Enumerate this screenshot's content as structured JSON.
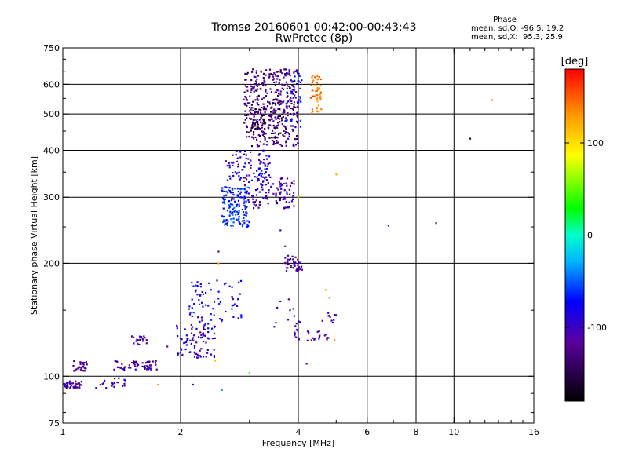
{
  "chart_data": {
    "type": "scatter",
    "title": "Tromsø 20160601 00:42:00-00:43:43",
    "subtitle": "RwPretec (8p)",
    "xlabel": "Frequency [MHz]",
    "ylabel": "Stationary phase Virtual Height [km]",
    "xscale": "log",
    "yscale": "log",
    "xlim": [
      1,
      16
    ],
    "ylim": [
      75,
      750
    ],
    "x_ticks": [
      1,
      2,
      4,
      6,
      8,
      10,
      16
    ],
    "y_ticks": [
      75,
      100,
      200,
      300,
      400,
      500,
      600,
      750
    ],
    "grid_x": [
      2,
      4,
      6,
      8,
      10
    ],
    "grid_y": [
      100,
      200,
      300,
      400,
      500,
      600
    ],
    "grid": true,
    "phase_stats": {
      "heading": "Phase",
      "o_line": "mean, sd,O: -96.5, 19.2",
      "x_line": "mean, sd,X:  95.3, 25.9"
    },
    "colorbar": {
      "label": "[deg]",
      "ticks": [
        100,
        0,
        -100
      ],
      "range": [
        -180,
        180
      ]
    },
    "clusters": [
      {
        "freq": [
          1.0,
          1.12
        ],
        "height": [
          93,
          97
        ],
        "count": 40,
        "phase": -110
      },
      {
        "freq": [
          1.05,
          1.16
        ],
        "height": [
          103,
          110
        ],
        "count": 30,
        "phase": -115
      },
      {
        "freq": [
          1.2,
          1.45
        ],
        "height": [
          93,
          99
        ],
        "count": 20,
        "phase": -108
      },
      {
        "freq": [
          1.35,
          1.75
        ],
        "height": [
          104,
          110
        ],
        "count": 60,
        "phase": -112
      },
      {
        "freq": [
          1.5,
          1.65
        ],
        "height": [
          121,
          128
        ],
        "count": 20,
        "phase": -110
      },
      {
        "freq": [
          1.95,
          2.45
        ],
        "height": [
          112,
          140
        ],
        "count": 90,
        "phase": -95
      },
      {
        "freq": [
          2.1,
          2.9
        ],
        "height": [
          140,
          180
        ],
        "count": 70,
        "phase": -80
      },
      {
        "freq": [
          2.55,
          3.0
        ],
        "height": [
          250,
          320
        ],
        "count": 140,
        "phase": -60
      },
      {
        "freq": [
          2.9,
          3.9
        ],
        "height": [
          280,
          340
        ],
        "count": 120,
        "phase": -110
      },
      {
        "freq": [
          2.6,
          3.4
        ],
        "height": [
          330,
          400
        ],
        "count": 90,
        "phase": -90
      },
      {
        "freq": [
          2.9,
          4.0
        ],
        "height": [
          410,
          660
        ],
        "count": 380,
        "phase": -130
      },
      {
        "freq": [
          3.0,
          3.6
        ],
        "height": [
          430,
          520
        ],
        "count": 60,
        "phase": -150
      },
      {
        "freq": [
          3.7,
          4.1
        ],
        "height": [
          460,
          650
        ],
        "count": 40,
        "phase": -70
      },
      {
        "freq": [
          4.3,
          4.6
        ],
        "height": [
          500,
          640
        ],
        "count": 50,
        "phase": 140
      },
      {
        "freq": [
          3.7,
          4.1
        ],
        "height": [
          190,
          210
        ],
        "count": 40,
        "phase": -115
      },
      {
        "freq": [
          3.9,
          4.05
        ],
        "height": [
          125,
          145
        ],
        "count": 15,
        "phase": -110
      },
      {
        "freq": [
          4.2,
          4.9
        ],
        "height": [
          124,
          132
        ],
        "count": 18,
        "phase": -112
      },
      {
        "freq": [
          4.6,
          5.0
        ],
        "height": [
          138,
          150
        ],
        "count": 10,
        "phase": -115
      },
      {
        "freq": [
          3.4,
          3.9
        ],
        "height": [
          135,
          170
        ],
        "count": 8,
        "phase": -120
      }
    ],
    "points": [
      {
        "freq": 6.8,
        "height": 252,
        "phase": -100
      },
      {
        "freq": 9.0,
        "height": 256,
        "phase": -110
      },
      {
        "freq": 11.0,
        "height": 430,
        "phase": -150
      },
      {
        "freq": 12.5,
        "height": 545,
        "phase": 140
      },
      {
        "freq": 5.0,
        "height": 345,
        "phase": 120
      },
      {
        "freq": 4.0,
        "height": 300,
        "phase": 110
      },
      {
        "freq": 3.6,
        "height": 245,
        "phase": -100
      },
      {
        "freq": 3.7,
        "height": 222,
        "phase": -110
      },
      {
        "freq": 2.55,
        "height": 92,
        "phase": -40
      },
      {
        "freq": 2.15,
        "height": 95,
        "phase": -100
      },
      {
        "freq": 1.75,
        "height": 95,
        "phase": 130
      },
      {
        "freq": 2.5,
        "height": 215,
        "phase": -120
      },
      {
        "freq": 2.5,
        "height": 200,
        "phase": 130
      },
      {
        "freq": 4.2,
        "height": 108,
        "phase": -110
      },
      {
        "freq": 4.95,
        "height": 125,
        "phase": 130
      },
      {
        "freq": 4.7,
        "height": 170,
        "phase": 120
      },
      {
        "freq": 4.8,
        "height": 162,
        "phase": 140
      },
      {
        "freq": 3.0,
        "height": 102,
        "phase": 40
      },
      {
        "freq": 1.85,
        "height": 120,
        "phase": -110
      },
      {
        "freq": 2.45,
        "height": 110,
        "phase": 110
      }
    ]
  }
}
